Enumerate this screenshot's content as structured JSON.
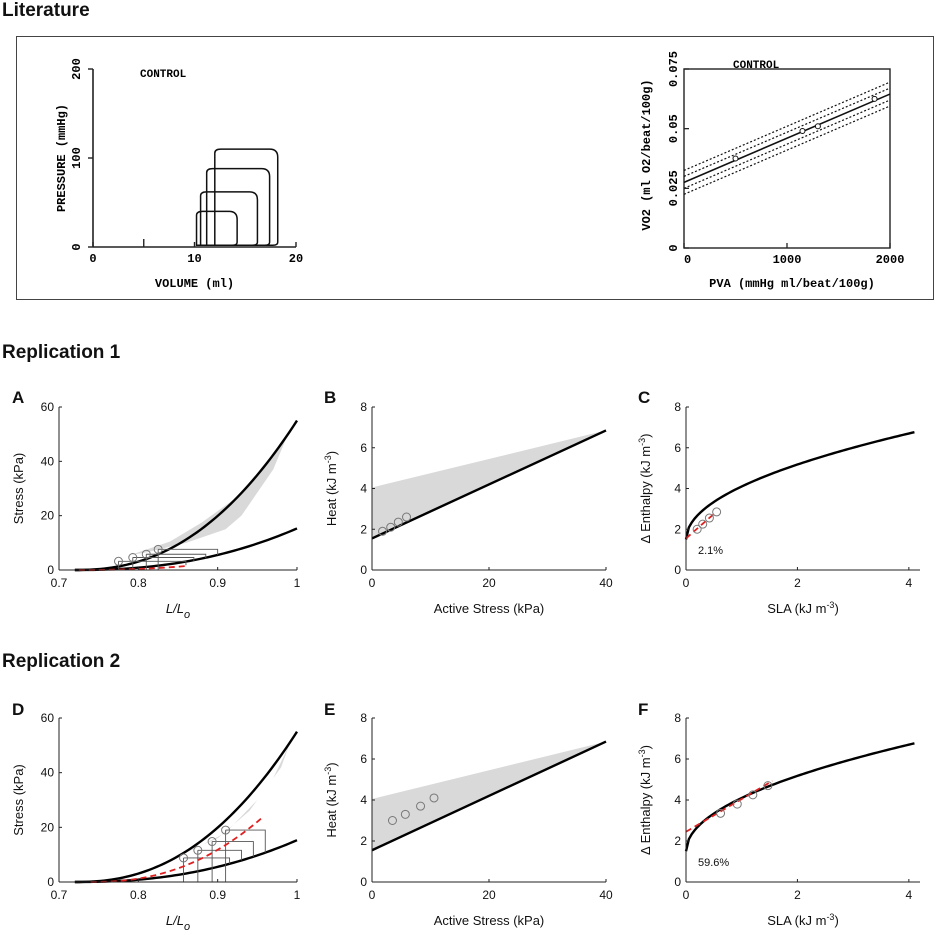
{
  "sections": {
    "literature": "Literature",
    "replication1": "Replication 1",
    "replication2": "Replication 2"
  },
  "chart_data": [
    {
      "id": "lit-pv",
      "type": "line",
      "title": "CONTROL",
      "xlabel": "VOLUME (ml)",
      "ylabel": "PRESSURE (mmHg)",
      "xlim": [
        0,
        20
      ],
      "ylim": [
        0,
        200
      ],
      "xticks": [
        0,
        10,
        20
      ],
      "xminor": [
        5
      ],
      "yticks": [
        0,
        100,
        200
      ],
      "loops": [
        {
          "v0": 10.2,
          "v1": 14.2,
          "p": 40
        },
        {
          "v0": 10.6,
          "v1": 16.2,
          "p": 62
        },
        {
          "v0": 11.2,
          "v1": 17.4,
          "p": 88
        },
        {
          "v0": 12.0,
          "v1": 18.2,
          "p": 110
        }
      ]
    },
    {
      "id": "lit-vo2",
      "type": "line",
      "title": "CONTROL",
      "xlabel": "PVA (mmHg ml/beat/100g)",
      "ylabel": "VO2 (ml O2/beat/100g)",
      "xlim": [
        0,
        2000
      ],
      "ylim": [
        0,
        0.075
      ],
      "xticks": [
        0,
        1000,
        2000
      ],
      "yticks": [
        0,
        0.025,
        0.05,
        0.075
      ],
      "ytick_labels": [
        "0",
        "0.025",
        "0.05",
        "0.075"
      ],
      "line": {
        "intercept": 0.0275,
        "slope": 1.85e-05
      },
      "bands": [
        0.0025,
        0.005
      ],
      "points": [
        [
          500,
          0.0375
        ],
        [
          1150,
          0.049
        ],
        [
          1300,
          0.051
        ],
        [
          1850,
          0.0625
        ]
      ]
    },
    {
      "id": "A",
      "panel": "A",
      "type": "line",
      "xlabel": "L/L",
      "xlabel_sub": "o",
      "ylabel": "Stress (kPa)",
      "xlim": [
        0.7,
        1.0
      ],
      "ylim": [
        0,
        60
      ],
      "xticks": [
        0.7,
        0.8,
        0.9,
        1
      ],
      "xtick_labels": [
        "0.7",
        "0.8",
        "0.9",
        "1"
      ],
      "yticks": [
        0,
        20,
        40,
        60
      ],
      "upper_curve": {
        "x0": 0.72,
        "a": 55
      },
      "lower_curve": {
        "x0": 0.72,
        "a": 15.3
      },
      "shade": [
        [
          0.79,
          5.5
        ],
        [
          0.84,
          10.5
        ],
        [
          0.88,
          17.5
        ],
        [
          0.93,
          28
        ],
        [
          0.97,
          42
        ],
        [
          0.99,
          51
        ],
        [
          0.97,
          37
        ],
        [
          0.93,
          20
        ],
        [
          0.91,
          15
        ],
        [
          0.86,
          10
        ],
        [
          0.81,
          6.5
        ]
      ],
      "fit": {
        "x0": 0.725,
        "a": 7.5,
        "xend": 0.86
      },
      "points": [
        [
          0.775,
          3.2
        ],
        [
          0.793,
          4.6
        ],
        [
          0.81,
          5.8
        ],
        [
          0.825,
          7.6
        ]
      ],
      "loop_ends": [
        0.86,
        0.87,
        0.885,
        0.9
      ],
      "fit_label": ""
    },
    {
      "id": "B",
      "panel": "B",
      "type": "line",
      "xlabel": "Active Stress (kPa)",
      "ylabel": "Heat (kJ m",
      "ylabel_sup": "-3",
      "xlim": [
        0,
        40
      ],
      "ylim": [
        0,
        8
      ],
      "xticks": [
        0,
        20,
        40
      ],
      "yticks": [
        0,
        2,
        4,
        6,
        8
      ],
      "line": {
        "intercept": 1.55,
        "slope": 0.1325
      },
      "shade": [
        [
          0,
          4.05
        ],
        [
          40,
          6.85
        ],
        [
          0,
          1.55
        ]
      ],
      "points": [
        [
          1.8,
          1.9
        ],
        [
          3.2,
          2.1
        ],
        [
          4.5,
          2.35
        ],
        [
          5.9,
          2.6
        ]
      ]
    },
    {
      "id": "C",
      "panel": "C",
      "type": "line",
      "xlabel": "SLA (kJ m",
      "xlabel_sup": "-3",
      "ylabel": "Δ Enthalpy (kJ m",
      "ylabel_sup": "-3",
      "xlim": [
        0,
        4.2
      ],
      "ylim": [
        0,
        8
      ],
      "xticks": [
        0,
        2,
        4
      ],
      "yticks": [
        0,
        2,
        4,
        6,
        8
      ],
      "curve": {
        "c0": 1.5,
        "k": 2.6,
        "p": 0.5,
        "xmax": 4.1
      },
      "fit": {
        "intercept": 1.55,
        "slope": 2.4,
        "x0": 0,
        "x1": 0.5
      },
      "points": [
        [
          0.2,
          2.0
        ],
        [
          0.3,
          2.25
        ],
        [
          0.42,
          2.55
        ],
        [
          0.55,
          2.85
        ]
      ],
      "annotation": "2.1%"
    },
    {
      "id": "D",
      "panel": "D",
      "type": "line",
      "xlabel": "L/L",
      "xlabel_sub": "o",
      "ylabel": "Stress (kPa)",
      "xlim": [
        0.7,
        1.0
      ],
      "ylim": [
        0,
        60
      ],
      "xticks": [
        0.7,
        0.8,
        0.9,
        1
      ],
      "xtick_labels": [
        "0.7",
        "0.8",
        "0.9",
        "1"
      ],
      "yticks": [
        0,
        20,
        40,
        60
      ],
      "upper_curve": {
        "x0": 0.72,
        "a": 55
      },
      "lower_curve": {
        "x0": 0.72,
        "a": 15.3
      },
      "shade": [
        [
          0.82,
          7
        ],
        [
          0.87,
          12
        ],
        [
          0.91,
          18
        ],
        [
          0.95,
          30
        ],
        [
          0.98,
          42
        ],
        [
          0.99,
          50
        ],
        [
          0.97,
          38
        ],
        [
          0.94,
          26
        ],
        [
          0.9,
          16
        ],
        [
          0.86,
          11
        ],
        [
          0.82,
          7
        ]
      ],
      "fit": {
        "x0": 0.74,
        "a": 36,
        "xend": 0.955
      },
      "points": [
        [
          0.857,
          8.8
        ],
        [
          0.875,
          11.6
        ],
        [
          0.893,
          14.8
        ],
        [
          0.91,
          19
        ]
      ],
      "loop_ends": [
        0.915,
        0.93,
        0.945,
        0.96
      ],
      "fit_label": ""
    },
    {
      "id": "E",
      "panel": "E",
      "type": "line",
      "xlabel": "Active Stress (kPa)",
      "ylabel": "Heat (kJ m",
      "ylabel_sup": "-3",
      "xlim": [
        0,
        40
      ],
      "ylim": [
        0,
        8
      ],
      "xticks": [
        0,
        20,
        40
      ],
      "yticks": [
        0,
        2,
        4,
        6,
        8
      ],
      "line": {
        "intercept": 1.55,
        "slope": 0.1325
      },
      "shade": [
        [
          0,
          4.05
        ],
        [
          40,
          6.85
        ],
        [
          0,
          1.55
        ]
      ],
      "points": [
        [
          3.5,
          3.0
        ],
        [
          5.7,
          3.3
        ],
        [
          8.3,
          3.7
        ],
        [
          10.6,
          4.1
        ]
      ]
    },
    {
      "id": "F",
      "panel": "F",
      "type": "line",
      "xlabel": "SLA (kJ m",
      "xlabel_sup": "-3",
      "ylabel": "Δ Enthalpy (kJ m",
      "ylabel_sup": "-3",
      "xlim": [
        0,
        4.2
      ],
      "ylim": [
        0,
        8
      ],
      "xticks": [
        0,
        2,
        4
      ],
      "yticks": [
        0,
        2,
        4,
        6,
        8
      ],
      "curve": {
        "c0": 1.5,
        "k": 2.6,
        "p": 0.5,
        "xmax": 4.1
      },
      "fit": {
        "intercept": 2.45,
        "slope": 1.6,
        "x0": 0,
        "x1": 1.55
      },
      "points": [
        [
          0.62,
          3.35
        ],
        [
          0.92,
          3.8
        ],
        [
          1.2,
          4.25
        ],
        [
          1.47,
          4.7
        ]
      ],
      "annotation": "59.6%"
    }
  ]
}
